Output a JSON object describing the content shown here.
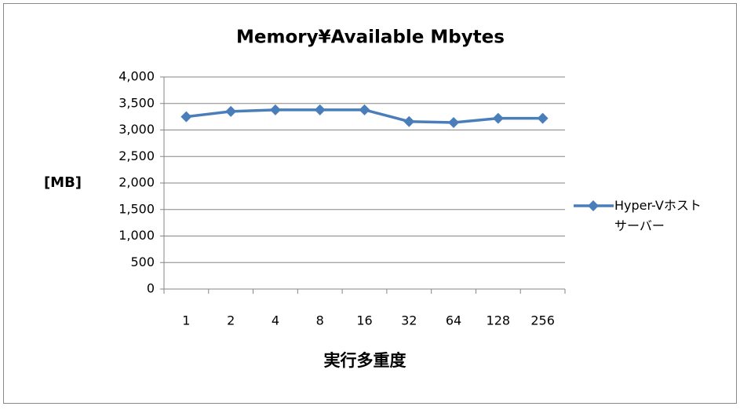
{
  "chart_data": {
    "type": "line",
    "title": "Memory¥Available Mbytes",
    "y_label": "[MB]",
    "x_label": "実行多重度",
    "categories": [
      "1",
      "2",
      "4",
      "8",
      "16",
      "32",
      "64",
      "128",
      "256"
    ],
    "series": [
      {
        "name": "Hyper-Vホストサーバー",
        "color": "#4a7ebb",
        "values": [
          3250,
          3350,
          3380,
          3380,
          3380,
          3160,
          3140,
          3220,
          3220
        ]
      }
    ],
    "ylim": [
      0,
      4000
    ],
    "yticks": [
      0,
      500,
      {
        "value": 1000,
        "label": "1,000"
      },
      {
        "value": 1500,
        "label": "1,500"
      },
      {
        "value": 2000,
        "label": "2,000"
      },
      {
        "value": 2500,
        "label": "2,500"
      },
      {
        "value": 3000,
        "label": "3,000"
      },
      {
        "value": 3500,
        "label": "3,500"
      },
      {
        "value": 4000,
        "label": "4,000"
      }
    ],
    "grid": true,
    "legend": "right"
  }
}
